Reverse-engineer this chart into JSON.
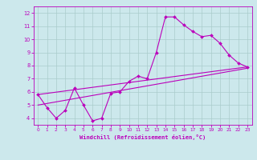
{
  "xlabel": "Windchill (Refroidissement éolien,°C)",
  "bg_color": "#cce8ec",
  "line_color": "#bb00bb",
  "grid_color": "#aacccc",
  "xlim": [
    -0.5,
    23.5
  ],
  "ylim": [
    3.5,
    12.5
  ],
  "xticks": [
    0,
    1,
    2,
    3,
    4,
    5,
    6,
    7,
    8,
    9,
    10,
    11,
    12,
    13,
    14,
    15,
    16,
    17,
    18,
    19,
    20,
    21,
    22,
    23
  ],
  "yticks": [
    4,
    5,
    6,
    7,
    8,
    9,
    10,
    11,
    12
  ],
  "line1_x": [
    0,
    1,
    2,
    3,
    4,
    5,
    6,
    7,
    8,
    9,
    10,
    11,
    12,
    13,
    14,
    15,
    16,
    17,
    18,
    19,
    20,
    21,
    22,
    23
  ],
  "line1_y": [
    5.8,
    4.8,
    4.0,
    4.6,
    6.3,
    5.0,
    3.8,
    4.0,
    5.9,
    6.0,
    6.8,
    7.2,
    7.0,
    9.0,
    11.7,
    11.7,
    11.1,
    10.6,
    10.2,
    10.3,
    9.7,
    8.8,
    8.2,
    7.9
  ],
  "line2_x": [
    0,
    23
  ],
  "line2_y": [
    5.0,
    7.8
  ],
  "line3_x": [
    0,
    23
  ],
  "line3_y": [
    5.8,
    7.9
  ]
}
